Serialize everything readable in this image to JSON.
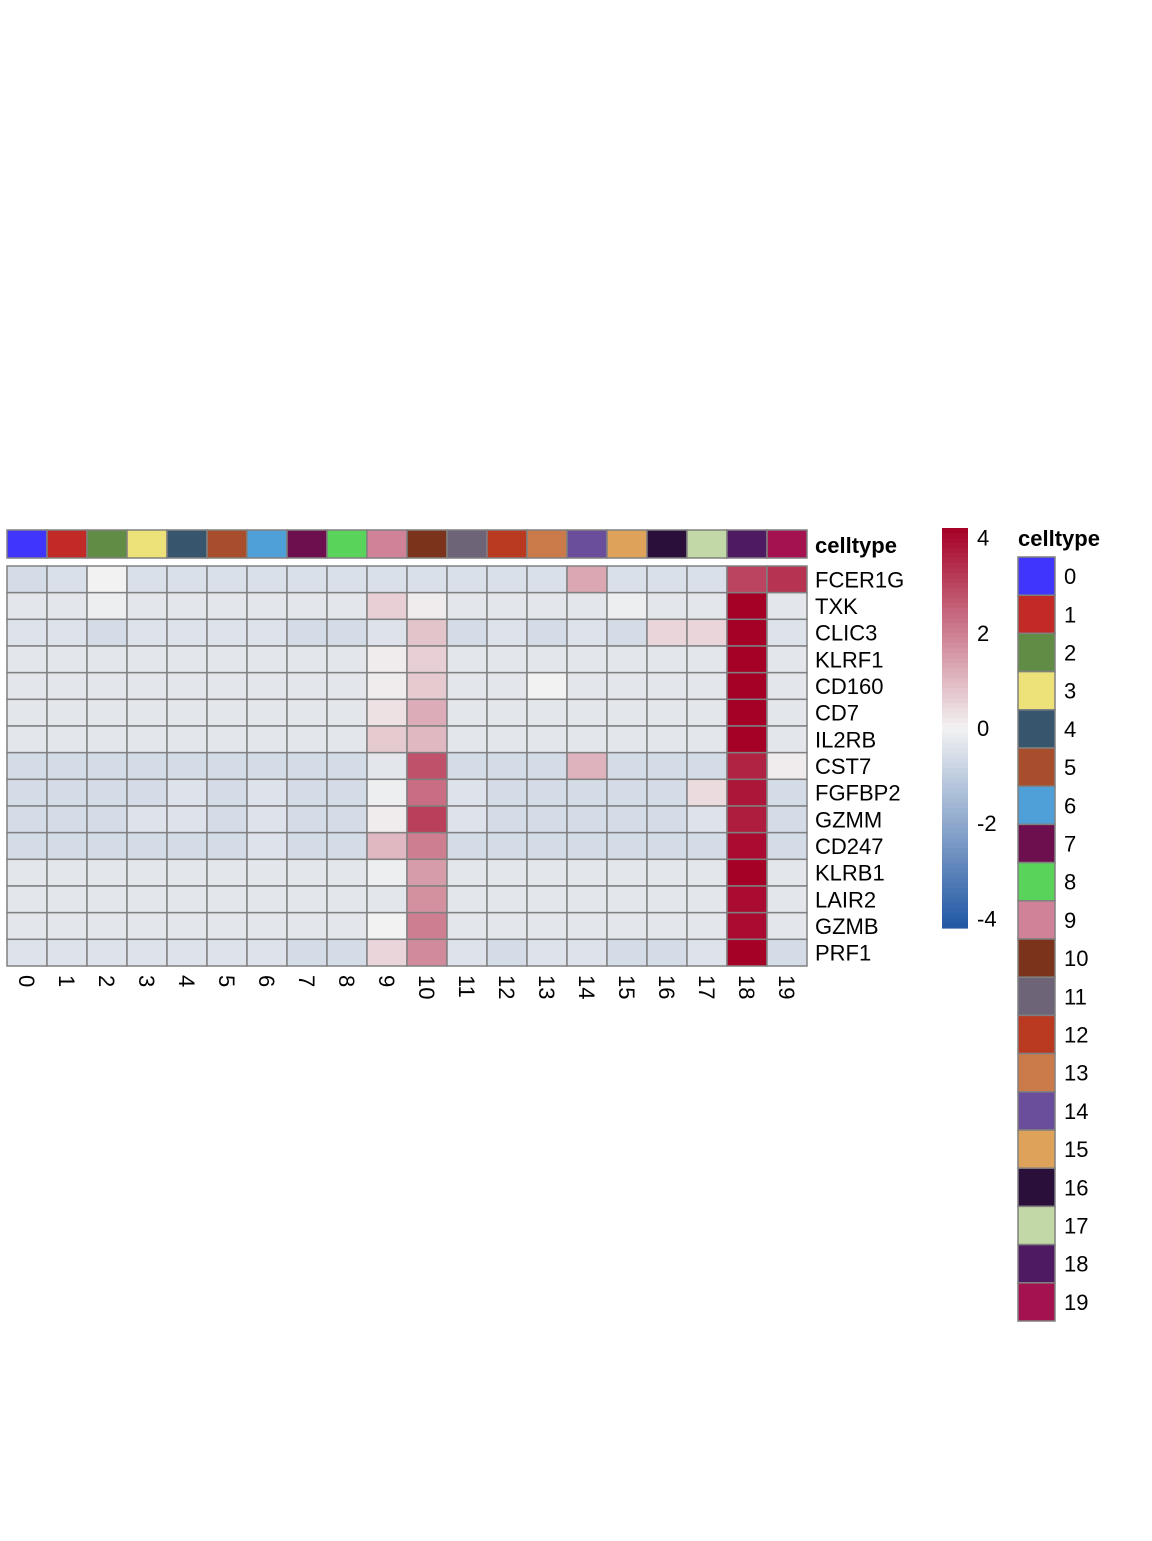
{
  "chart_data": {
    "type": "heatmap",
    "annotation_label": "celltype",
    "legend_title": "celltype",
    "columns": [
      "0",
      "1",
      "2",
      "3",
      "4",
      "5",
      "6",
      "7",
      "8",
      "9",
      "10",
      "11",
      "12",
      "13",
      "14",
      "15",
      "16",
      "17",
      "18",
      "19"
    ],
    "column_colors": [
      "#3f35fc",
      "#c22a27",
      "#618c46",
      "#ede27a",
      "#37566e",
      "#a84e2d",
      "#4fa0d8",
      "#6d0f4e",
      "#5ad35a",
      "#cf8298",
      "#7b331b",
      "#6e6477",
      "#b93a21",
      "#cb7a4a",
      "#6a4e9c",
      "#dfa25a",
      "#2b0f3b",
      "#c3d8a7",
      "#4e1a62",
      "#a4134f"
    ],
    "rows": [
      "FCER1G",
      "TXK",
      "CLIC3",
      "KLRF1",
      "CD160",
      "CD7",
      "IL2RB",
      "CST7",
      "FGFBP2",
      "GZMM",
      "CD247",
      "KLRB1",
      "LAIR2",
      "GZMB",
      "PRF1"
    ],
    "values": [
      [
        -0.6,
        -0.5,
        0.0,
        -0.5,
        -0.5,
        -0.5,
        -0.5,
        -0.5,
        -0.5,
        -0.5,
        -0.5,
        -0.5,
        -0.5,
        -0.5,
        1.3,
        -0.5,
        -0.5,
        -0.5,
        3.0,
        3.3
      ],
      [
        -0.3,
        -0.3,
        -0.1,
        -0.3,
        -0.3,
        -0.3,
        -0.3,
        -0.3,
        -0.3,
        0.6,
        0.1,
        -0.3,
        -0.3,
        -0.3,
        -0.3,
        -0.1,
        -0.3,
        -0.3,
        4.2,
        -0.3
      ],
      [
        -0.4,
        -0.4,
        -0.6,
        -0.4,
        -0.4,
        -0.4,
        -0.4,
        -0.6,
        -0.6,
        -0.4,
        0.8,
        -0.6,
        -0.4,
        -0.6,
        -0.4,
        -0.6,
        0.5,
        0.5,
        4.2,
        -0.4
      ],
      [
        -0.3,
        -0.3,
        -0.3,
        -0.3,
        -0.3,
        -0.3,
        -0.3,
        -0.3,
        -0.3,
        0.1,
        0.6,
        -0.3,
        -0.3,
        -0.3,
        -0.3,
        -0.3,
        -0.3,
        -0.3,
        4.2,
        -0.3
      ],
      [
        -0.3,
        -0.3,
        -0.3,
        -0.3,
        -0.3,
        -0.3,
        -0.3,
        -0.3,
        -0.3,
        0.1,
        0.7,
        -0.3,
        -0.3,
        0.0,
        -0.3,
        -0.3,
        -0.3,
        -0.3,
        4.2,
        -0.3
      ],
      [
        -0.3,
        -0.3,
        -0.3,
        -0.3,
        -0.3,
        -0.3,
        -0.3,
        -0.3,
        -0.3,
        0.3,
        1.2,
        -0.3,
        -0.3,
        -0.3,
        -0.3,
        -0.3,
        -0.3,
        -0.3,
        4.2,
        -0.3
      ],
      [
        -0.3,
        -0.3,
        -0.3,
        -0.3,
        -0.3,
        -0.3,
        -0.3,
        -0.3,
        -0.3,
        0.7,
        1.0,
        -0.3,
        -0.3,
        -0.3,
        -0.3,
        -0.3,
        -0.3,
        -0.3,
        4.2,
        -0.3
      ],
      [
        -0.6,
        -0.6,
        -0.6,
        -0.6,
        -0.6,
        -0.6,
        -0.6,
        -0.6,
        -0.6,
        -0.3,
        2.8,
        -0.6,
        -0.6,
        -0.6,
        1.1,
        -0.6,
        -0.6,
        -0.6,
        3.6,
        0.1
      ],
      [
        -0.6,
        -0.6,
        -0.6,
        -0.6,
        -0.4,
        -0.6,
        -0.4,
        -0.6,
        -0.6,
        -0.1,
        2.3,
        -0.4,
        -0.6,
        -0.6,
        -0.6,
        -0.6,
        -0.6,
        0.4,
        3.8,
        -0.6
      ],
      [
        -0.6,
        -0.6,
        -0.6,
        -0.4,
        -0.4,
        -0.6,
        -0.4,
        -0.6,
        -0.6,
        0.1,
        3.1,
        -0.4,
        -0.6,
        -0.6,
        -0.6,
        -0.6,
        -0.6,
        -0.4,
        3.7,
        -0.6
      ],
      [
        -0.6,
        -0.6,
        -0.6,
        -0.6,
        -0.6,
        -0.6,
        -0.4,
        -0.6,
        -0.6,
        1.0,
        2.0,
        -0.6,
        -0.6,
        -0.6,
        -0.6,
        -0.6,
        -0.6,
        -0.6,
        4.0,
        -0.6
      ],
      [
        -0.3,
        -0.3,
        -0.3,
        -0.3,
        -0.3,
        -0.3,
        -0.3,
        -0.3,
        -0.3,
        -0.1,
        1.5,
        -0.3,
        -0.3,
        -0.3,
        -0.3,
        -0.3,
        -0.3,
        -0.3,
        4.2,
        -0.3
      ],
      [
        -0.3,
        -0.3,
        -0.3,
        -0.3,
        -0.3,
        -0.3,
        -0.3,
        -0.3,
        -0.3,
        -0.3,
        1.7,
        -0.3,
        -0.3,
        -0.3,
        -0.3,
        -0.3,
        -0.3,
        -0.3,
        4.0,
        -0.3
      ],
      [
        -0.3,
        -0.3,
        -0.3,
        -0.3,
        -0.3,
        -0.3,
        -0.3,
        -0.3,
        -0.3,
        0.0,
        2.0,
        -0.3,
        -0.3,
        -0.3,
        -0.3,
        -0.3,
        -0.3,
        -0.3,
        4.0,
        -0.3
      ],
      [
        -0.4,
        -0.4,
        -0.4,
        -0.4,
        -0.4,
        -0.4,
        -0.4,
        -0.6,
        -0.6,
        0.5,
        1.8,
        -0.4,
        -0.6,
        -0.4,
        -0.4,
        -0.6,
        -0.6,
        -0.4,
        4.2,
        -0.6
      ]
    ],
    "color_scale": {
      "min": -4.2,
      "max": 4.2,
      "low": "#2057a4",
      "mid": "#f2f2f2",
      "high": "#a50026"
    },
    "colorbar_ticks": [
      4,
      2,
      0,
      -2,
      -4
    ],
    "colorbar_tick_labels": [
      "4",
      "2",
      "0",
      "-2",
      "-4"
    ],
    "cell_border": "#808080",
    "grid": true,
    "legend_placement": "right"
  }
}
